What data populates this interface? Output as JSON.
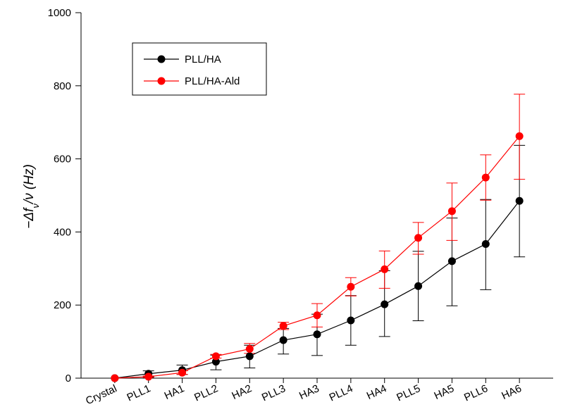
{
  "chart_data": {
    "type": "line",
    "title": "",
    "xlabel": "",
    "ylabel_parts": [
      "−Δ",
      "f",
      "ν",
      "/",
      "ν",
      " (Hz)"
    ],
    "categories": [
      "Crystal",
      "PLL1",
      "HA1",
      "PLL2",
      "HA2",
      "PLL3",
      "HA3",
      "PLL4",
      "HA4",
      "PLL5",
      "HA5",
      "PLL6",
      "HA6"
    ],
    "ylim": [
      0,
      1000
    ],
    "yticks": [
      0,
      200,
      400,
      600,
      800,
      1000
    ],
    "grid": false,
    "legend_position": "top-left",
    "series": [
      {
        "name": "PLL/HA",
        "color": "#000000",
        "values": [
          0,
          12,
          22,
          45,
          60,
          104,
          120,
          158,
          202,
          252,
          320,
          367,
          485
        ],
        "err_low": [
          0,
          8,
          12,
          22,
          32,
          38,
          58,
          68,
          88,
          95,
          122,
          125,
          153
        ],
        "err_high": [
          0,
          8,
          14,
          18,
          30,
          32,
          55,
          68,
          92,
          95,
          118,
          122,
          152
        ]
      },
      {
        "name": "PLL/HA-Ald",
        "color": "#ff0000",
        "values": [
          0,
          4,
          15,
          60,
          80,
          143,
          172,
          250,
          298,
          384,
          457,
          549,
          662
        ],
        "err_low": [
          0,
          2,
          5,
          5,
          12,
          10,
          32,
          25,
          52,
          45,
          80,
          62,
          118
        ],
        "err_high": [
          0,
          2,
          5,
          5,
          15,
          10,
          32,
          25,
          50,
          42,
          77,
          62,
          115
        ]
      }
    ]
  }
}
